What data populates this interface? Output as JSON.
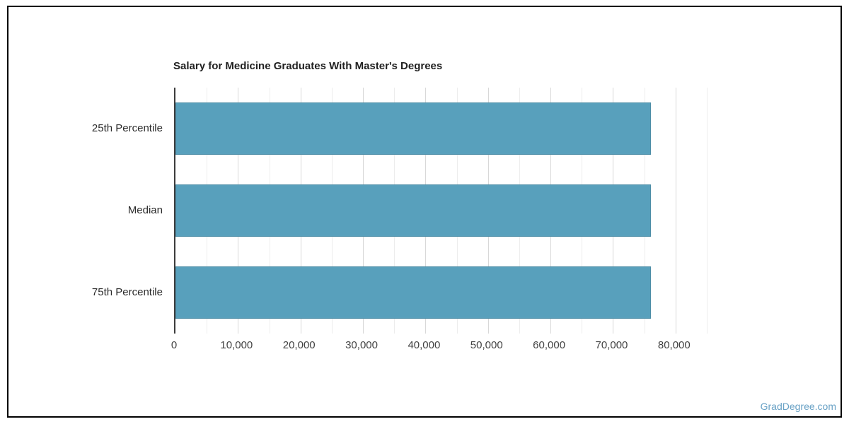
{
  "title": "Salary for Medicine Graduates With Master's Degrees",
  "watermark": "GradDegree.com",
  "colors": {
    "bar": "#58a0bc",
    "axis_line": "#3c3c3c",
    "grid_minor": "#ededed",
    "grid_major": "#d8d8d8",
    "title_text": "#212121",
    "category_text": "#2b2b2b",
    "tick_text": "#424242",
    "watermark_text": "#68a1c5",
    "frame_border": "#000000"
  },
  "chart_data": {
    "type": "bar",
    "orientation": "horizontal",
    "title": "Salary for Medicine Graduates With Master's Degrees",
    "categories": [
      "25th Percentile",
      "Median",
      "75th Percentile"
    ],
    "values": [
      76100,
      76100,
      76100
    ],
    "xlabel": "",
    "ylabel": "",
    "xlim": [
      0,
      85000
    ],
    "x_tick_interval": 10000,
    "x_minor_tick_interval": 5000,
    "x_tick_labels": [
      "0",
      "10,000",
      "20,000",
      "30,000",
      "40,000",
      "50,000",
      "60,000",
      "70,000",
      "80,000"
    ],
    "grid": true,
    "legend": false
  }
}
